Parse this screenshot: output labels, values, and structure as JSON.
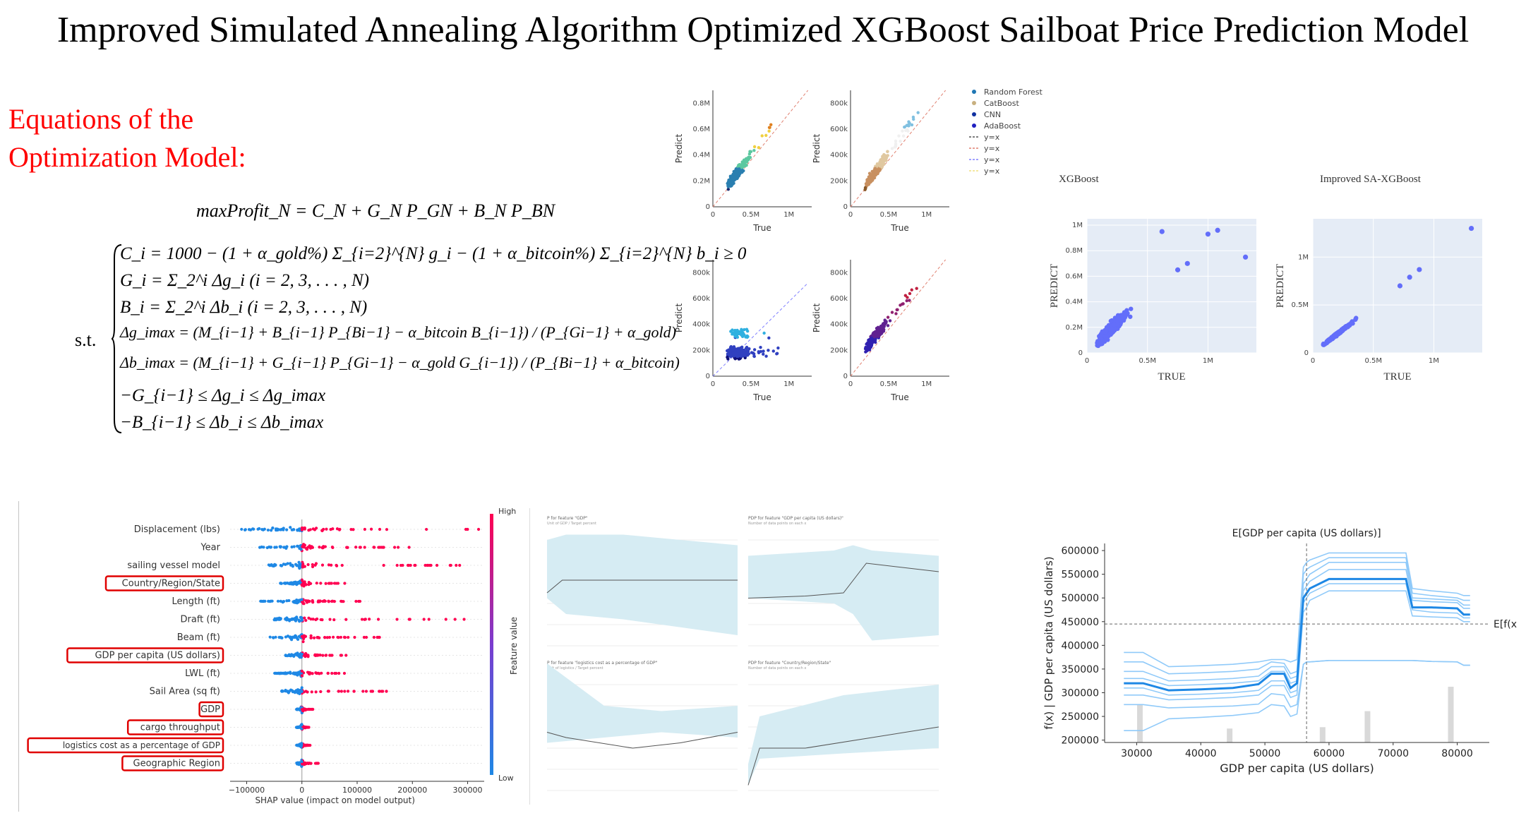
{
  "title": "Improved Simulated Annealing Algorithm Optimized XGBoost Sailboat Price Prediction Model",
  "equations": {
    "heading_line1": "Equations of the",
    "heading_line2": "Optimization Model:",
    "objective": "maxProfit_N = C_N + G_N P_GN + B_N P_BN",
    "st": "s.t.",
    "constraints": [
      "C_i = 1000 − (1 + α_gold%) Σ_{i=2}^{N} g_i − (1 + α_bitcoin%) Σ_{i=2}^{N} b_i ≥ 0",
      "G_i = Σ_2^i Δg_i   (i = 2, 3, . . . , N)",
      "B_i = Σ_2^i Δb_i   (i = 2, 3, . . . , N)",
      "Δg_imax = (M_{i−1} + B_{i−1} P_{Bi−1} − α_bitcoin B_{i−1}) / (P_{Gi−1} + α_gold)",
      "Δb_imax = (M_{i−1} + G_{i−1} P_{Gi−1} − α_gold G_{i−1}) / (P_{Bi−1} + α_bitcoin)",
      "−G_{i−1} ≤ Δg_i ≤ Δg_imax",
      "−B_{i−1} ≤ Δb_i ≤ Δb_imax"
    ]
  },
  "chart_data": [
    {
      "type": "scatter",
      "panel": "Random Forest",
      "xlabel": "True",
      "ylabel": "Predict",
      "x_ticks": [
        "0",
        "0.5M",
        "1M"
      ],
      "y_ticks": [
        "0",
        "0.2M",
        "0.4M",
        "0.6M",
        "0.8M"
      ],
      "xlim": [
        0,
        1300000
      ],
      "ylim": [
        0,
        900000
      ],
      "colors": [
        "#1a2a6e",
        "#2a7fb0",
        "#5cc8a0",
        "#f0d040",
        "#e08020",
        "#c02010"
      ]
    },
    {
      "type": "scatter",
      "panel": "CatBoost",
      "xlabel": "True",
      "ylabel": "Predict",
      "x_ticks": [
        "0",
        "0.5M",
        "1M"
      ],
      "y_ticks": [
        "0",
        "200k",
        "400k",
        "600k",
        "800k"
      ],
      "xlim": [
        0,
        1300000
      ],
      "ylim": [
        0,
        900000
      ],
      "colors": [
        "#8a5a2a",
        "#c89060",
        "#e0c8a0",
        "#f0f0f0",
        "#80c0e0",
        "#2060a0"
      ]
    },
    {
      "type": "scatter",
      "panel": "CNN",
      "xlabel": "True",
      "ylabel": "Predict",
      "x_ticks": [
        "0",
        "0.5M",
        "1M"
      ],
      "y_ticks": [
        "0",
        "200k",
        "400k",
        "600k",
        "800k"
      ],
      "xlim": [
        0,
        1300000
      ],
      "ylim": [
        0,
        900000
      ],
      "colors": [
        "#10107a",
        "#3040c0",
        "#30b0e0",
        "#60e0f0",
        "#f0d020",
        "#c00000"
      ]
    },
    {
      "type": "scatter",
      "panel": "AdaBoost",
      "xlabel": "True",
      "ylabel": "Predict",
      "x_ticks": [
        "0",
        "0.5M",
        "1M"
      ],
      "y_ticks": [
        "0",
        "200k",
        "400k",
        "600k",
        "800k"
      ],
      "xlim": [
        0,
        1300000
      ],
      "ylim": [
        0,
        900000
      ],
      "colors": [
        "#1010d0",
        "#3020b0",
        "#602090",
        "#902070",
        "#c02040",
        "#ff0000"
      ]
    },
    {
      "type": "legend",
      "entries": [
        {
          "label": "Random Forest",
          "color": "#1f77b4",
          "kind": "dot"
        },
        {
          "label": "CatBoost",
          "color": "#c8b080",
          "kind": "dot"
        },
        {
          "label": "CNN",
          "color": "#1030a0",
          "kind": "dot"
        },
        {
          "label": "AdaBoost",
          "color": "#2020c0",
          "kind": "dot"
        },
        {
          "label": "y=x",
          "color": "#555555",
          "kind": "dash"
        },
        {
          "label": "y=x",
          "color": "#e08070",
          "kind": "dash"
        },
        {
          "label": "y=x",
          "color": "#8080ff",
          "kind": "dash"
        },
        {
          "label": "y=x",
          "color": "#f0e080",
          "kind": "dash"
        }
      ]
    },
    {
      "type": "scatter",
      "title": "XGBoost",
      "xlabel": "TRUE",
      "ylabel": "PREDICT",
      "x_ticks": [
        "0",
        "0.5M",
        "1M"
      ],
      "y_ticks": [
        "0",
        "0.2M",
        "0.4M",
        "0.6M",
        "0.8M",
        "1M"
      ],
      "xlim": [
        0,
        1400000
      ],
      "ylim": [
        0,
        1050000
      ],
      "color": "#636efa",
      "outliers": [
        [
          620000,
          950000
        ],
        [
          1000000,
          930000
        ],
        [
          1080000,
          960000
        ],
        [
          1310000,
          750000
        ],
        [
          830000,
          700000
        ],
        [
          750000,
          650000
        ]
      ]
    },
    {
      "type": "scatter",
      "title": "Improved SA-XGBoost",
      "xlabel": "TRUE",
      "ylabel": "PREDICT",
      "x_ticks": [
        "0",
        "0.5M",
        "1M"
      ],
      "y_ticks": [
        "0",
        "0.5M",
        "1M"
      ],
      "xlim": [
        0,
        1400000
      ],
      "ylim": [
        0,
        1400000
      ],
      "color": "#636efa",
      "outliers": [
        [
          1310000,
          1300000
        ],
        [
          880000,
          870000
        ],
        [
          800000,
          790000
        ],
        [
          720000,
          700000
        ]
      ]
    },
    {
      "type": "beeswarm",
      "features": [
        "Displacement (lbs)",
        "Year",
        "sailing vessel model",
        "Country/Region/State",
        "Length (ft)",
        "Draft (ft)",
        "Beam (ft)",
        "GDP per capita (US dollars)",
        "LWL (ft)",
        "Sail Area (sq ft)",
        "GDP",
        "cargo throughput",
        "logistics cost as a percentage of GDP",
        "Geographic Region"
      ],
      "highlighted": [
        "Country/Region/State",
        "GDP per capita (US dollars)",
        "GDP",
        "cargo throughput",
        "logistics cost as a percentage of GDP",
        "Geographic Region"
      ],
      "spread": [
        [
          -120000,
          320000
        ],
        [
          -80000,
          220000
        ],
        [
          -60000,
          290000
        ],
        [
          -40000,
          80000
        ],
        [
          -80000,
          120000
        ],
        [
          -50000,
          300000
        ],
        [
          -60000,
          150000
        ],
        [
          -30000,
          90000
        ],
        [
          -50000,
          80000
        ],
        [
          -40000,
          160000
        ],
        [
          -10000,
          20000
        ],
        [
          -10000,
          15000
        ],
        [
          -10000,
          15000
        ],
        [
          -10000,
          35000
        ]
      ],
      "xlabel": "SHAP value (impact on model output)",
      "x_ticks": [
        "−100000",
        "0",
        "100000",
        "200000",
        "300000"
      ],
      "xlim": [
        -130000,
        330000
      ],
      "colorbar_label": "Feature value",
      "colorbar_high": "High",
      "colorbar_low": "Low",
      "colors": {
        "low": "#1e88e5",
        "high": "#ff0051"
      }
    },
    {
      "type": "line",
      "title": "PDP for feature \"GDP per capita (US dollars)\"",
      "xlabel": "GDP per capita (US dollars)",
      "ylabel": "f(x) | GDP per capita (US dollars)",
      "x_ticks": [
        30000,
        40000,
        50000,
        60000,
        70000,
        80000
      ],
      "y_ticks": [
        200000,
        250000,
        300000,
        350000,
        400000,
        450000,
        500000,
        550000,
        600000
      ],
      "xlim": [
        25000,
        85000
      ],
      "ylim": [
        195000,
        615000
      ],
      "top_annotation": "E[GDP per capita (US dollars)]",
      "right_annotation": "E[f(x)]",
      "expected_x": 56500,
      "expected_fx": 445000,
      "x": [
        28000,
        31000,
        35000,
        40000,
        45000,
        49000,
        51000,
        53000,
        54000,
        55000,
        56000,
        56500,
        57000,
        60000,
        65000,
        70000,
        72000,
        73000,
        76000,
        80000,
        81000,
        82000
      ],
      "mean": [
        320000,
        320000,
        305000,
        307000,
        310000,
        318000,
        340000,
        340000,
        310000,
        320000,
        500000,
        510000,
        520000,
        540000,
        540000,
        540000,
        540000,
        480000,
        480000,
        478000,
        465000,
        465000
      ],
      "ice": [
        [
          385000,
          385000,
          355000,
          357000,
          360000,
          365000,
          370000,
          370000,
          365000,
          370000,
          565000,
          575000,
          580000,
          595000,
          595000,
          595000,
          595000,
          520000,
          515000,
          510000,
          505000,
          505000
        ],
        [
          365000,
          365000,
          340000,
          342000,
          345000,
          350000,
          365000,
          362000,
          340000,
          345000,
          550000,
          560000,
          565000,
          585000,
          585000,
          585000,
          585000,
          510000,
          505000,
          500000,
          495000,
          495000
        ],
        [
          345000,
          345000,
          325000,
          327000,
          330000,
          335000,
          355000,
          355000,
          330000,
          335000,
          530000,
          540000,
          550000,
          575000,
          575000,
          575000,
          575000,
          500000,
          498000,
          495000,
          485000,
          485000
        ],
        [
          330000,
          330000,
          315000,
          317000,
          320000,
          325000,
          345000,
          345000,
          320000,
          325000,
          515000,
          525000,
          535000,
          560000,
          560000,
          560000,
          560000,
          495000,
          492000,
          490000,
          478000,
          478000
        ],
        [
          310000,
          310000,
          295000,
          297000,
          300000,
          305000,
          325000,
          325000,
          300000,
          305000,
          490000,
          500000,
          510000,
          530000,
          530000,
          530000,
          530000,
          475000,
          470000,
          468000,
          458000,
          458000
        ],
        [
          295000,
          295000,
          285000,
          287000,
          290000,
          295000,
          315000,
          315000,
          290000,
          295000,
          470000,
          480000,
          495000,
          515000,
          515000,
          515000,
          515000,
          462000,
          460000,
          458000,
          450000,
          450000
        ],
        [
          275000,
          275000,
          268000,
          270000,
          272000,
          276000,
          298000,
          295000,
          270000,
          275000,
          360000,
          365000,
          365000,
          368000,
          368000,
          368000,
          368000,
          368000,
          366000,
          365000,
          358000,
          358000
        ],
        [
          220000,
          220000,
          245000,
          248000,
          252000,
          258000,
          275000,
          272000,
          250000,
          255000,
          360000,
          365000,
          365000,
          368000,
          368000,
          368000,
          368000,
          368000,
          366000,
          365000,
          358000,
          358000
        ]
      ],
      "histogram": [
        {
          "x": 30500,
          "h": 0.55
        },
        {
          "x": 44500,
          "h": 0.2
        },
        {
          "x": 59000,
          "h": 0.22
        },
        {
          "x": 66000,
          "h": 0.45
        },
        {
          "x": 79000,
          "h": 0.8
        }
      ],
      "colors": {
        "mean": "#1e88e5",
        "ice": "#90caf9",
        "hist": "#d9d9d9"
      }
    }
  ],
  "small_pdps": [
    {
      "title": "P for feature \"GDP\"",
      "subtitle": "Unit of GDP / Target percent"
    },
    {
      "title": "PDP for feature \"GDP per capita (US dollars)\"",
      "subtitle": "Number of data points on each x"
    },
    {
      "title": "P for feature \"logistics cost as a percentage of GDP\"",
      "subtitle": "Unit of logistics / Target percent"
    },
    {
      "title": "PDP for feature \"Country/Region/State\"",
      "subtitle": "Number of data points on each x"
    }
  ]
}
